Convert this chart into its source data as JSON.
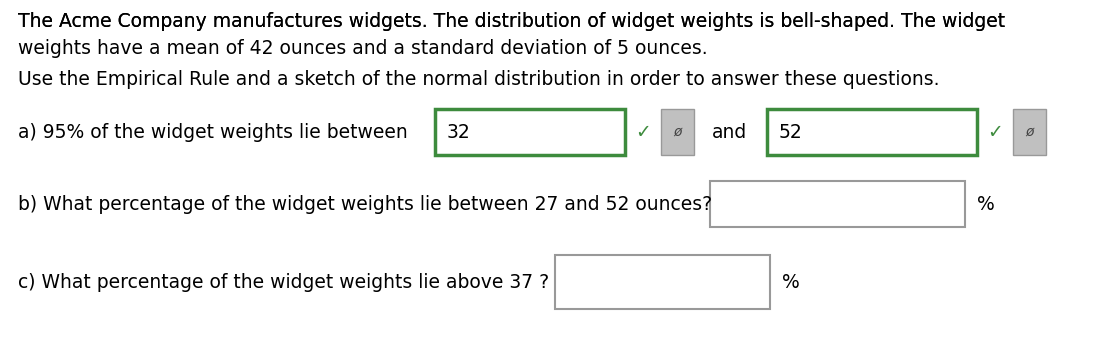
{
  "bg_color": "#ffffff",
  "text_color": "#000000",
  "green_border": "#3d8b3d",
  "gray_border": "#999999",
  "gray_btn_face": "#c0c0c0",
  "para1_line1": "The Acme Company manufactures widgets. The distribution of widget weights is bell-shaped. The widget",
  "para1_line2": "weights have a mean of 42 ounces and a standard deviation of 5 ounces.",
  "para2": "Use the Empirical Rule and a sketch of the normal distribution in order to answer these questions.",
  "line_a_prefix": "a) 95% of the widget weights lie between",
  "line_a_val1": "32",
  "line_a_mid": "and",
  "line_a_val2": "52",
  "line_b": "b) What percentage of the widget weights lie between 27 and 52 ounces?",
  "line_c": "c) What percentage of the widget weights lie above 37 ?",
  "percent_symbol": "%",
  "checkmark": "✓",
  "edit_char": "ø",
  "font_size_body": 13.5,
  "fig_width": 11.16,
  "fig_height": 3.42,
  "dpi": 100
}
